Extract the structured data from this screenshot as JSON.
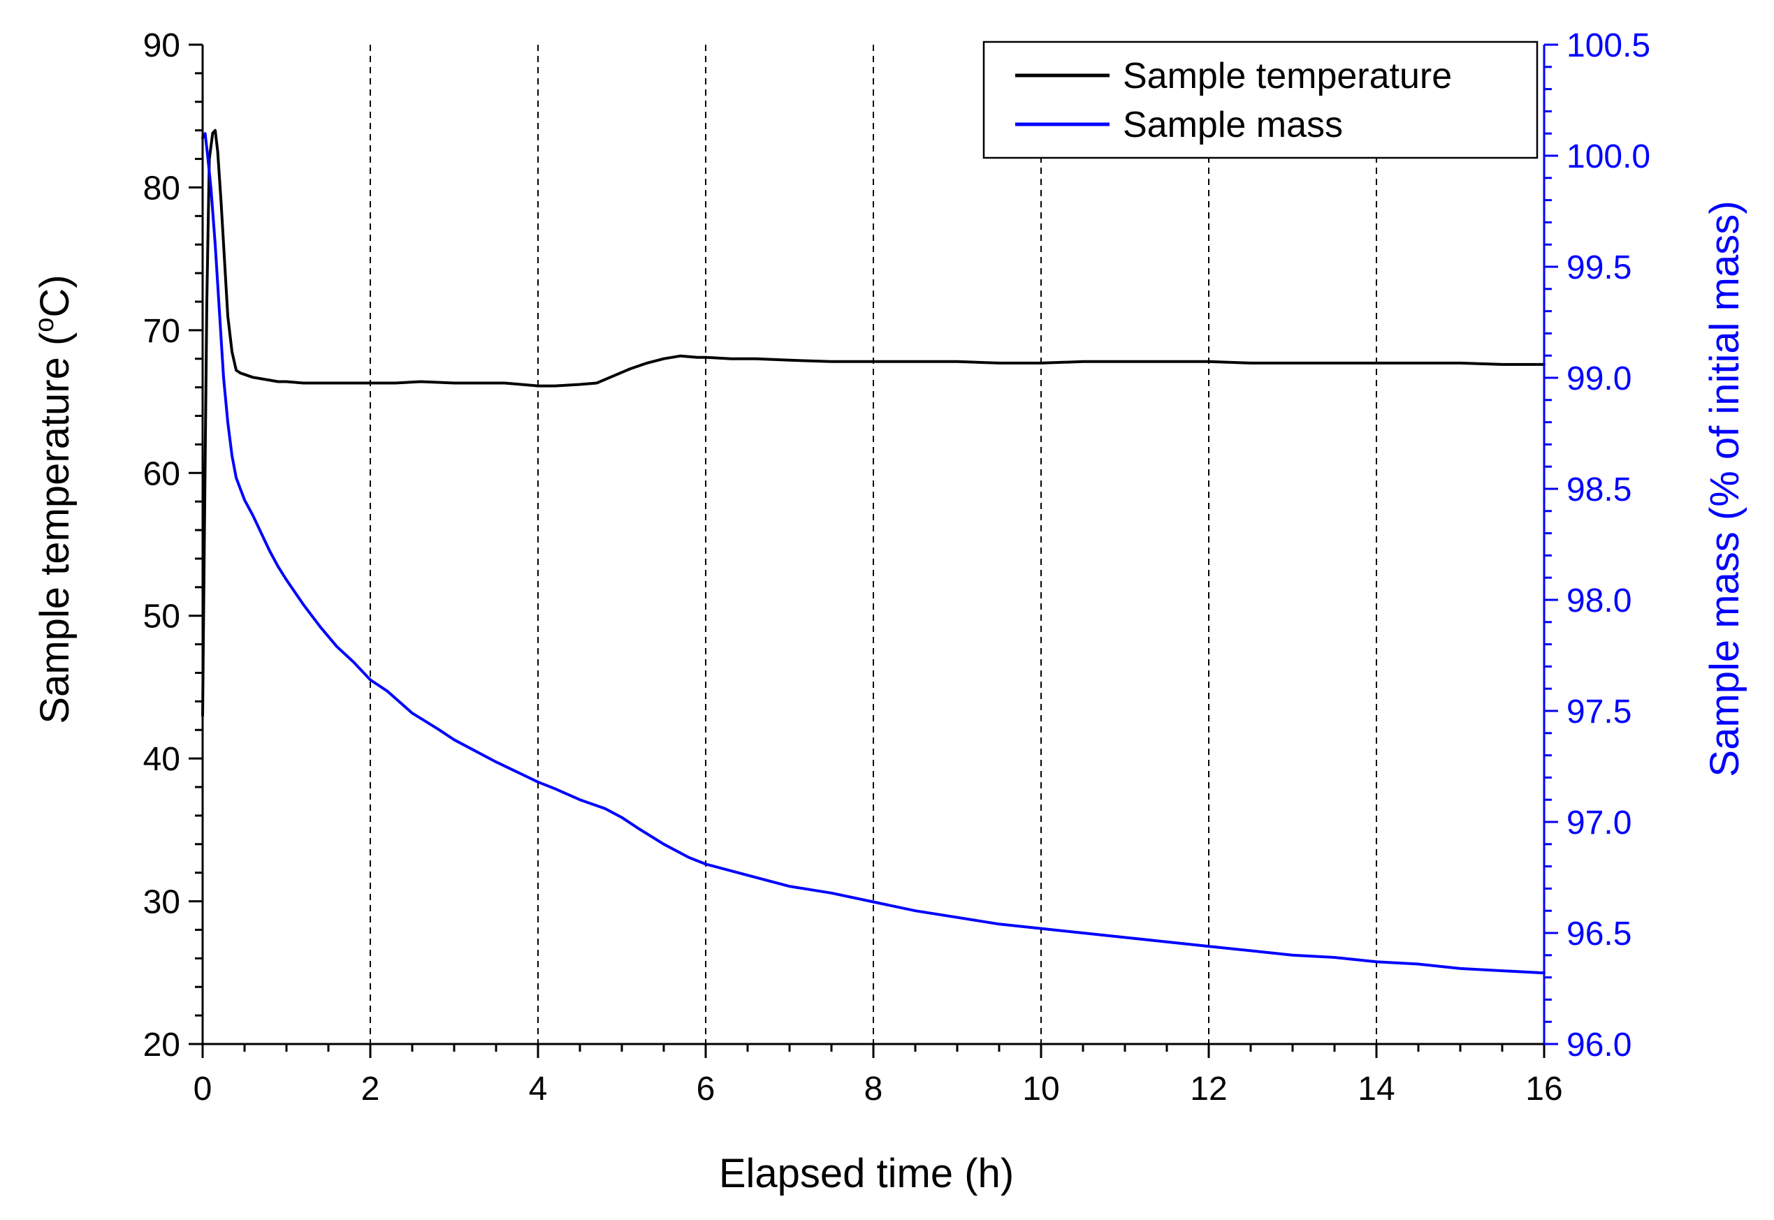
{
  "chart_data": {
    "type": "line",
    "title": "",
    "xlabel": "Elapsed time (h)",
    "ylabel_left": "Sample temperature (°C)",
    "ylabel_left_main": "Sample temperature (",
    "ylabel_left_sup": "o",
    "ylabel_left_unit": "C)",
    "ylabel_right": "Sample mass (% of initial mass)",
    "xlim": [
      0,
      16
    ],
    "ylim_left": [
      20,
      90
    ],
    "ylim_right": [
      96.0,
      100.5
    ],
    "x_ticks": [
      0,
      2,
      4,
      6,
      8,
      10,
      12,
      14,
      16
    ],
    "x_tick_labels": [
      "0",
      "2",
      "4",
      "6",
      "8",
      "10",
      "12",
      "14",
      "16"
    ],
    "y_left_ticks": [
      20,
      30,
      40,
      50,
      60,
      70,
      80,
      90
    ],
    "y_left_tick_labels": [
      "20",
      "30",
      "40",
      "50",
      "60",
      "70",
      "80",
      "90"
    ],
    "y_right_ticks": [
      96.0,
      96.5,
      97.0,
      97.5,
      98.0,
      98.5,
      99.0,
      99.5,
      100.0,
      100.5
    ],
    "y_right_tick_labels": [
      "96.0",
      "96.5",
      "97.0",
      "97.5",
      "98.0",
      "98.5",
      "99.0",
      "99.5",
      "100.0",
      "100.5"
    ],
    "grid": "vertical dashed at major x ticks",
    "legend_position": "top-right",
    "series": [
      {
        "name": "Sample temperature",
        "axis": "left",
        "color": "#000000",
        "x": [
          0.0,
          0.02,
          0.05,
          0.08,
          0.12,
          0.15,
          0.18,
          0.22,
          0.26,
          0.3,
          0.35,
          0.4,
          0.45,
          0.5,
          0.55,
          0.6,
          0.7,
          0.8,
          0.9,
          1.0,
          1.2,
          1.4,
          1.6,
          1.8,
          2.0,
          2.3,
          2.6,
          3.0,
          3.3,
          3.6,
          3.8,
          4.0,
          4.2,
          4.5,
          4.7,
          4.9,
          5.1,
          5.3,
          5.5,
          5.7,
          5.9,
          6.0,
          6.3,
          6.6,
          7.0,
          7.5,
          8.0,
          8.5,
          9.0,
          9.5,
          10.0,
          10.5,
          11.0,
          11.5,
          12.0,
          12.5,
          13.0,
          13.5,
          14.0,
          14.5,
          15.0,
          15.5,
          16.0
        ],
        "y": [
          43.0,
          55.0,
          72.0,
          82.0,
          83.8,
          84.0,
          82.5,
          79.0,
          75.0,
          71.0,
          68.5,
          67.2,
          67.0,
          66.9,
          66.8,
          66.7,
          66.6,
          66.5,
          66.4,
          66.4,
          66.3,
          66.3,
          66.3,
          66.3,
          66.3,
          66.3,
          66.4,
          66.3,
          66.3,
          66.3,
          66.2,
          66.1,
          66.1,
          66.2,
          66.3,
          66.8,
          67.3,
          67.7,
          68.0,
          68.2,
          68.1,
          68.1,
          68.0,
          68.0,
          67.9,
          67.8,
          67.8,
          67.8,
          67.8,
          67.7,
          67.7,
          67.8,
          67.8,
          67.8,
          67.8,
          67.7,
          67.7,
          67.7,
          67.7,
          67.7,
          67.7,
          67.6,
          67.6
        ]
      },
      {
        "name": "Sample mass",
        "axis": "right",
        "color": "#0000ff",
        "x": [
          0.0,
          0.03,
          0.06,
          0.1,
          0.15,
          0.2,
          0.25,
          0.3,
          0.35,
          0.4,
          0.5,
          0.6,
          0.7,
          0.8,
          0.9,
          1.0,
          1.2,
          1.4,
          1.6,
          1.8,
          2.0,
          2.2,
          2.5,
          2.8,
          3.0,
          3.5,
          4.0,
          4.2,
          4.5,
          4.8,
          5.0,
          5.2,
          5.5,
          5.8,
          6.0,
          6.5,
          7.0,
          7.5,
          8.0,
          8.5,
          9.0,
          9.5,
          10.0,
          10.5,
          11.0,
          11.5,
          12.0,
          12.5,
          13.0,
          13.5,
          14.0,
          14.5,
          15.0,
          15.5,
          16.0
        ],
        "y": [
          100.08,
          100.1,
          100.0,
          99.85,
          99.6,
          99.3,
          99.0,
          98.8,
          98.65,
          98.55,
          98.45,
          98.38,
          98.3,
          98.22,
          98.15,
          98.09,
          97.98,
          97.88,
          97.79,
          97.72,
          97.64,
          97.59,
          97.49,
          97.42,
          97.37,
          97.27,
          97.18,
          97.15,
          97.1,
          97.06,
          97.02,
          96.97,
          96.9,
          96.84,
          96.81,
          96.76,
          96.71,
          96.68,
          96.64,
          96.6,
          96.57,
          96.54,
          96.52,
          96.5,
          96.48,
          96.46,
          96.44,
          96.42,
          96.4,
          96.39,
          96.37,
          96.36,
          96.34,
          96.33,
          96.32
        ]
      }
    ]
  }
}
